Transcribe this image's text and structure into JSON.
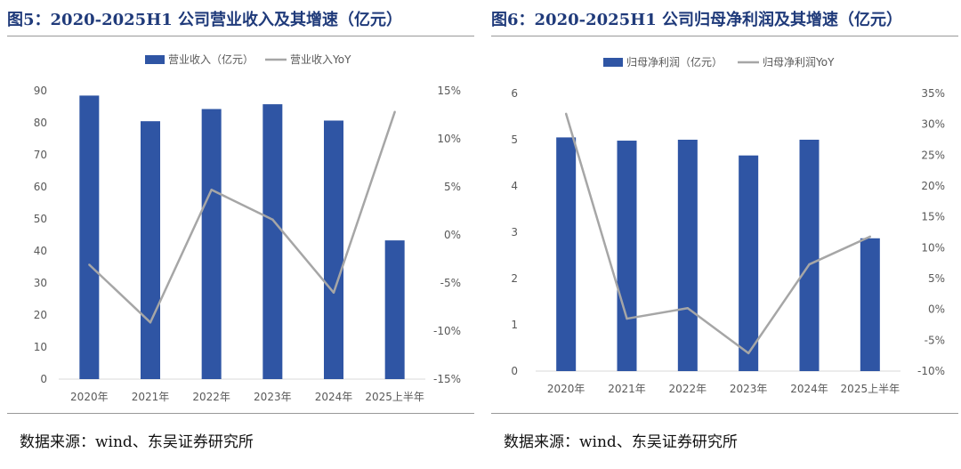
{
  "colors": {
    "bar": "#2F55A4",
    "line": "#A6A6A6",
    "title": "#1f3a7a"
  },
  "figures": [
    {
      "title": "图5：2020-2025H1 公司营业收入及其增速（亿元）",
      "source": "数据来源：wind、东吴证券研究所"
    },
    {
      "title": "图6：2020-2025H1 公司归母净利润及其增速（亿元）",
      "source": "数据来源：wind、东吴证券研究所"
    }
  ],
  "chart_data": [
    {
      "type": "bar",
      "categories": [
        "2020年",
        "2021年",
        "2022年",
        "2023年",
        "2024年",
        "2025上半年"
      ],
      "series": [
        {
          "name": "营业收入（亿元）",
          "type": "bar",
          "axis": "left",
          "values": [
            88.5,
            80.5,
            84.3,
            85.8,
            80.7,
            43.3
          ]
        },
        {
          "name": "营业收入YoY",
          "type": "line",
          "axis": "right",
          "values": [
            -3.1,
            -9.1,
            4.7,
            1.6,
            -6.0,
            12.8
          ]
        }
      ],
      "y_left": {
        "min": 0,
        "max": 90,
        "step": 10,
        "ticks": [
          "0",
          "10",
          "20",
          "30",
          "40",
          "50",
          "60",
          "70",
          "80",
          "90"
        ]
      },
      "y_right": {
        "min": -15,
        "max": 15,
        "step": 5,
        "ticks": [
          "-15%",
          "-10%",
          "-5%",
          "0%",
          "5%",
          "10%",
          "15%"
        ]
      },
      "legend_position": "top-center",
      "grid": false
    },
    {
      "type": "bar",
      "categories": [
        "2020年",
        "2021年",
        "2022年",
        "2023年",
        "2024年",
        "2025上半年"
      ],
      "series": [
        {
          "name": "归母净利润（亿元）",
          "type": "bar",
          "axis": "left",
          "values": [
            5.05,
            4.98,
            5.0,
            4.66,
            5.0,
            2.87
          ]
        },
        {
          "name": "归母净利润YoY",
          "type": "line",
          "axis": "right",
          "values": [
            31.7,
            -1.5,
            0.2,
            -7.1,
            7.3,
            11.8
          ]
        }
      ],
      "y_left": {
        "min": 0,
        "max": 6,
        "step": 1,
        "ticks": [
          "0",
          "1",
          "2",
          "3",
          "4",
          "5",
          "6"
        ]
      },
      "y_right": {
        "min": -10,
        "max": 35,
        "step": 5,
        "ticks": [
          "-10%",
          "-5%",
          "0%",
          "5%",
          "10%",
          "15%",
          "20%",
          "25%",
          "30%",
          "35%"
        ]
      },
      "legend_position": "top-center",
      "grid": false
    }
  ]
}
